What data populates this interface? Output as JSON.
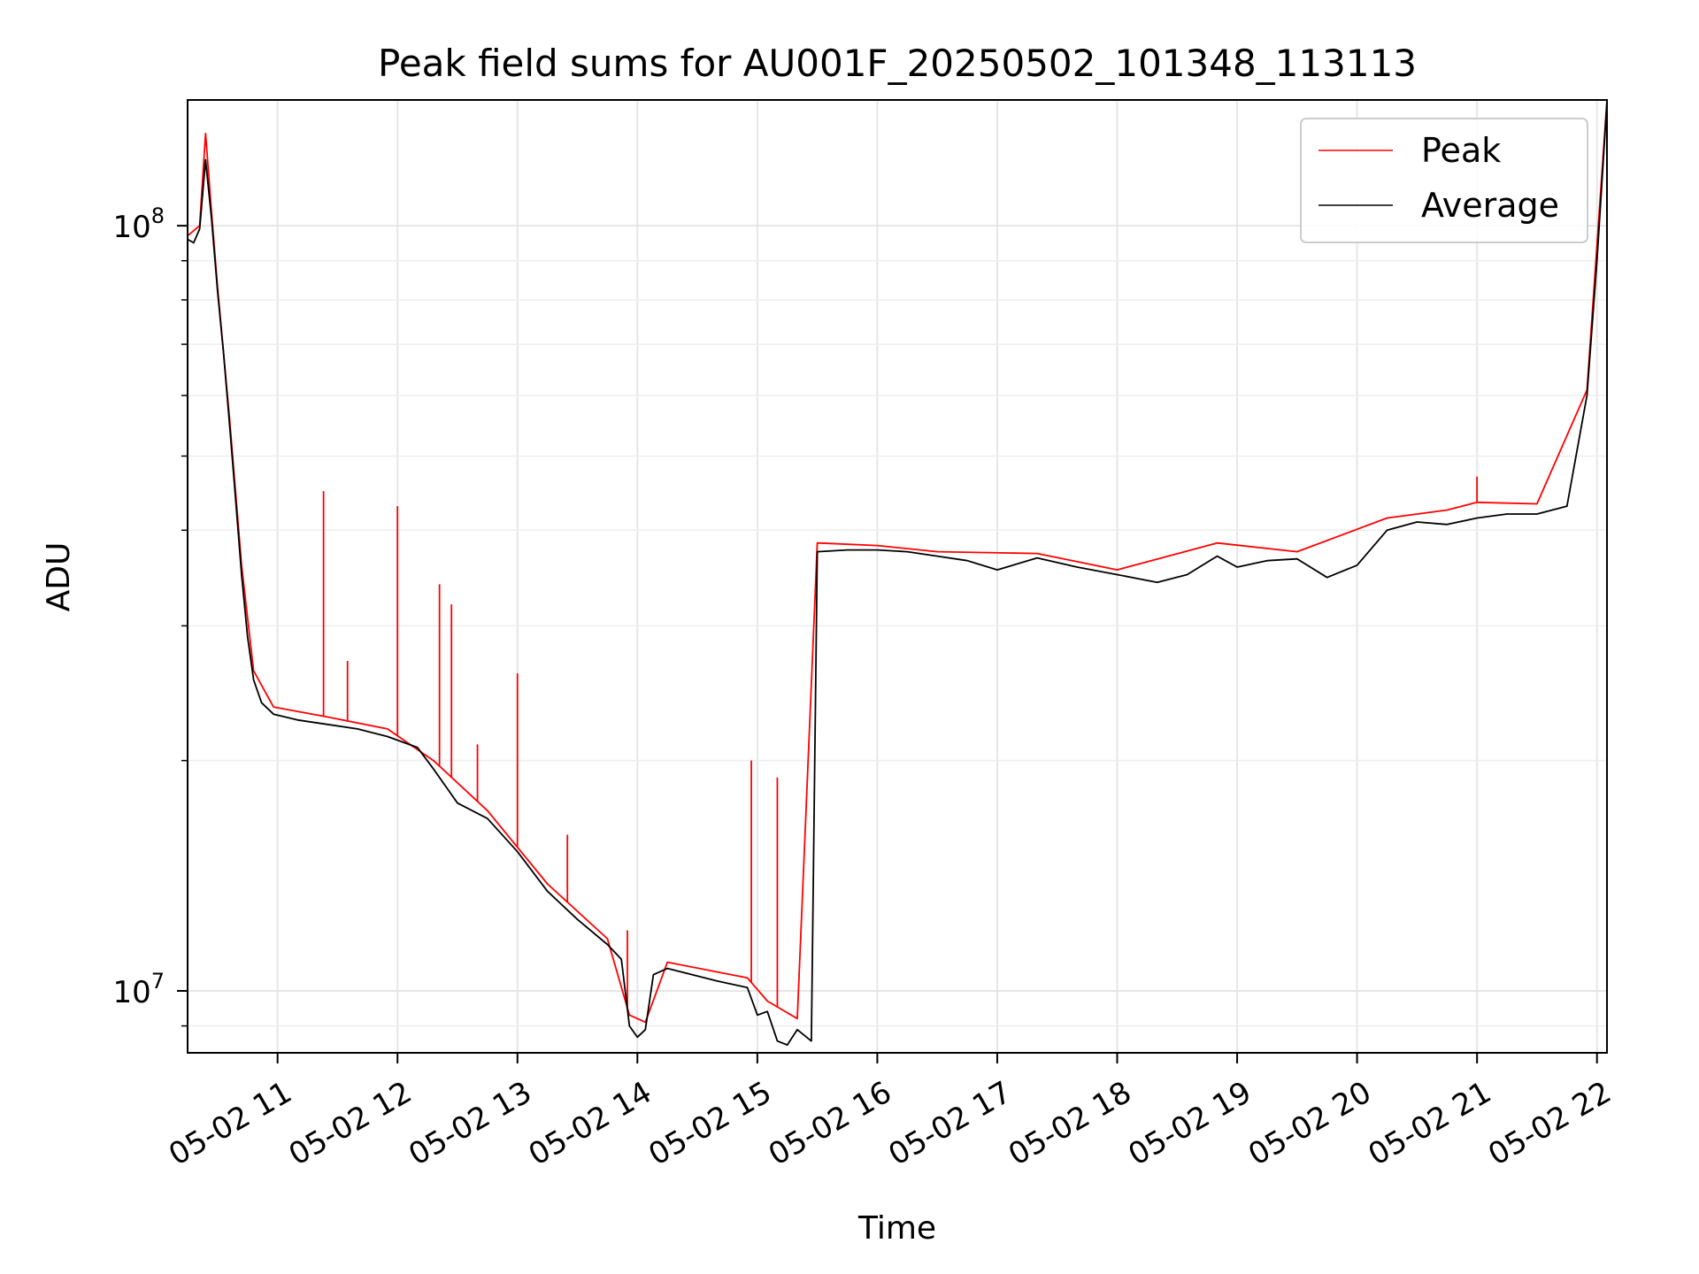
{
  "chart_data": {
    "type": "line",
    "title": "Peak field sums for AU001F_20250502_101348_113113",
    "xlabel": "Time",
    "ylabel": "ADU",
    "x_scale": "time",
    "y_scale": "log",
    "xlim": [
      "2025-05-02T10:15",
      "2025-05-02T22:05"
    ],
    "ylim": [
      8300000,
      146000000
    ],
    "x_ticks": [
      {
        "t": "2025-05-02T11:00",
        "label": "05-02 11"
      },
      {
        "t": "2025-05-02T12:00",
        "label": "05-02 12"
      },
      {
        "t": "2025-05-02T13:00",
        "label": "05-02 13"
      },
      {
        "t": "2025-05-02T14:00",
        "label": "05-02 14"
      },
      {
        "t": "2025-05-02T15:00",
        "label": "05-02 15"
      },
      {
        "t": "2025-05-02T16:00",
        "label": "05-02 16"
      },
      {
        "t": "2025-05-02T17:00",
        "label": "05-02 17"
      },
      {
        "t": "2025-05-02T18:00",
        "label": "05-02 18"
      },
      {
        "t": "2025-05-02T19:00",
        "label": "05-02 19"
      },
      {
        "t": "2025-05-02T20:00",
        "label": "05-02 20"
      },
      {
        "t": "2025-05-02T21:00",
        "label": "05-02 21"
      },
      {
        "t": "2025-05-02T22:00",
        "label": "05-02 22"
      }
    ],
    "y_major_ticks": [
      {
        "value": 10000000,
        "label_base": "10",
        "label_exp": "7"
      },
      {
        "value": 100000000,
        "label_base": "10",
        "label_exp": "8"
      }
    ],
    "y_minor_ticks": [
      9000000,
      20000000,
      30000000,
      40000000,
      50000000,
      60000000,
      70000000,
      80000000,
      90000000
    ],
    "grid": true,
    "legend": {
      "placement": "top-right",
      "entries": [
        "Peak",
        "Average"
      ]
    },
    "series": [
      {
        "name": "Average",
        "color": "#000000",
        "points": [
          [
            "2025-05-02T10:15",
            96000000
          ],
          [
            "2025-05-02T10:18",
            95000000
          ],
          [
            "2025-05-02T10:21",
            99000000
          ],
          [
            "2025-05-02T10:24",
            122000000
          ],
          [
            "2025-05-02T10:27",
            102000000
          ],
          [
            "2025-05-02T10:30",
            82000000
          ],
          [
            "2025-05-02T10:33",
            68000000
          ],
          [
            "2025-05-02T10:36",
            55000000
          ],
          [
            "2025-05-02T10:39",
            44000000
          ],
          [
            "2025-05-02T10:42",
            35000000
          ],
          [
            "2025-05-02T10:45",
            29000000
          ],
          [
            "2025-05-02T10:48",
            25500000
          ],
          [
            "2025-05-02T10:52",
            23800000
          ],
          [
            "2025-05-02T10:58",
            23000000
          ],
          [
            "2025-05-02T11:10",
            22600000
          ],
          [
            "2025-05-02T11:25",
            22300000
          ],
          [
            "2025-05-02T11:40",
            22000000
          ],
          [
            "2025-05-02T11:55",
            21500000
          ],
          [
            "2025-05-02T12:10",
            20800000
          ],
          [
            "2025-05-02T12:18",
            19500000
          ],
          [
            "2025-05-02T12:30",
            17600000
          ],
          [
            "2025-05-02T12:45",
            16800000
          ],
          [
            "2025-05-02T13:00",
            15200000
          ],
          [
            "2025-05-02T13:15",
            13500000
          ],
          [
            "2025-05-02T13:30",
            12400000
          ],
          [
            "2025-05-02T13:45",
            11500000
          ],
          [
            "2025-05-02T13:52",
            11000000
          ],
          [
            "2025-05-02T13:56",
            9000000
          ],
          [
            "2025-05-02T14:00",
            8700000
          ],
          [
            "2025-05-02T14:04",
            8900000
          ],
          [
            "2025-05-02T14:08",
            10500000
          ],
          [
            "2025-05-02T14:15",
            10700000
          ],
          [
            "2025-05-02T14:40",
            10300000
          ],
          [
            "2025-05-02T14:55",
            10100000
          ],
          [
            "2025-05-02T15:00",
            9300000
          ],
          [
            "2025-05-02T15:05",
            9400000
          ],
          [
            "2025-05-02T15:10",
            8600000
          ],
          [
            "2025-05-02T15:15",
            8500000
          ],
          [
            "2025-05-02T15:20",
            8900000
          ],
          [
            "2025-05-02T15:27",
            8600000
          ],
          [
            "2025-05-02T15:30",
            37500000
          ],
          [
            "2025-05-02T15:45",
            37700000
          ],
          [
            "2025-05-02T16:00",
            37700000
          ],
          [
            "2025-05-02T16:15",
            37500000
          ],
          [
            "2025-05-02T16:30",
            37000000
          ],
          [
            "2025-05-02T16:45",
            36500000
          ],
          [
            "2025-05-02T17:00",
            35500000
          ],
          [
            "2025-05-02T17:20",
            36800000
          ],
          [
            "2025-05-02T17:40",
            35800000
          ],
          [
            "2025-05-02T18:00",
            35000000
          ],
          [
            "2025-05-02T18:20",
            34200000
          ],
          [
            "2025-05-02T18:35",
            35000000
          ],
          [
            "2025-05-02T18:50",
            37000000
          ],
          [
            "2025-05-02T19:00",
            35800000
          ],
          [
            "2025-05-02T19:15",
            36500000
          ],
          [
            "2025-05-02T19:30",
            36700000
          ],
          [
            "2025-05-02T19:45",
            34700000
          ],
          [
            "2025-05-02T20:00",
            36000000
          ],
          [
            "2025-05-02T20:15",
            40000000
          ],
          [
            "2025-05-02T20:30",
            41000000
          ],
          [
            "2025-05-02T20:45",
            40700000
          ],
          [
            "2025-05-02T21:00",
            41500000
          ],
          [
            "2025-05-02T21:15",
            42000000
          ],
          [
            "2025-05-02T21:30",
            42000000
          ],
          [
            "2025-05-02T21:45",
            43000000
          ],
          [
            "2025-05-02T21:55",
            60000000
          ],
          [
            "2025-05-02T22:00",
            90000000
          ],
          [
            "2025-05-02T22:05",
            145000000
          ]
        ]
      },
      {
        "name": "Peak",
        "color": "#ff0000",
        "points": [
          [
            "2025-05-02T10:15",
            97000000
          ],
          [
            "2025-05-02T10:21",
            100000000
          ],
          [
            "2025-05-02T10:24",
            132000000
          ],
          [
            "2025-05-02T10:27",
            104000000
          ],
          [
            "2025-05-02T10:30",
            83000000
          ],
          [
            "2025-05-02T10:36",
            56000000
          ],
          [
            "2025-05-02T10:42",
            36000000
          ],
          [
            "2025-05-02T10:48",
            26200000
          ],
          [
            "2025-05-02T10:58",
            23500000
          ],
          [
            "2025-05-02T11:25",
            22800000
          ],
          [
            "2025-05-02T11:55",
            22000000
          ],
          [
            "2025-05-02T12:18",
            20000000
          ],
          [
            "2025-05-02T12:45",
            17200000
          ],
          [
            "2025-05-02T13:15",
            13800000
          ],
          [
            "2025-05-02T13:45",
            11700000
          ],
          [
            "2025-05-02T13:56",
            9300000
          ],
          [
            "2025-05-02T14:04",
            9100000
          ],
          [
            "2025-05-02T14:15",
            10900000
          ],
          [
            "2025-05-02T14:55",
            10400000
          ],
          [
            "2025-05-02T15:05",
            9700000
          ],
          [
            "2025-05-02T15:20",
            9200000
          ],
          [
            "2025-05-02T15:30",
            38500000
          ],
          [
            "2025-05-02T16:00",
            38200000
          ],
          [
            "2025-05-02T16:30",
            37500000
          ],
          [
            "2025-05-02T17:20",
            37300000
          ],
          [
            "2025-05-02T18:00",
            35500000
          ],
          [
            "2025-05-02T18:50",
            38500000
          ],
          [
            "2025-05-02T19:30",
            37500000
          ],
          [
            "2025-05-02T20:15",
            41500000
          ],
          [
            "2025-05-02T20:45",
            42500000
          ],
          [
            "2025-05-02T21:00",
            43500000
          ],
          [
            "2025-05-02T21:30",
            43300000
          ],
          [
            "2025-05-02T21:55",
            61000000
          ],
          [
            "2025-05-02T22:05",
            146000000
          ]
        ],
        "spikes": [
          [
            "2025-05-02T11:23",
            45000000
          ],
          [
            "2025-05-02T11:35",
            27000000
          ],
          [
            "2025-05-02T12:00",
            43000000
          ],
          [
            "2025-05-02T12:21",
            34000000
          ],
          [
            "2025-05-02T12:27",
            32000000
          ],
          [
            "2025-05-02T12:40",
            21000000
          ],
          [
            "2025-05-02T13:00",
            26000000
          ],
          [
            "2025-05-02T13:25",
            16000000
          ],
          [
            "2025-05-02T13:55",
            12000000
          ],
          [
            "2025-05-02T14:57",
            20000000
          ],
          [
            "2025-05-02T15:10",
            19000000
          ],
          [
            "2025-05-02T21:00",
            47000000
          ]
        ]
      }
    ]
  }
}
